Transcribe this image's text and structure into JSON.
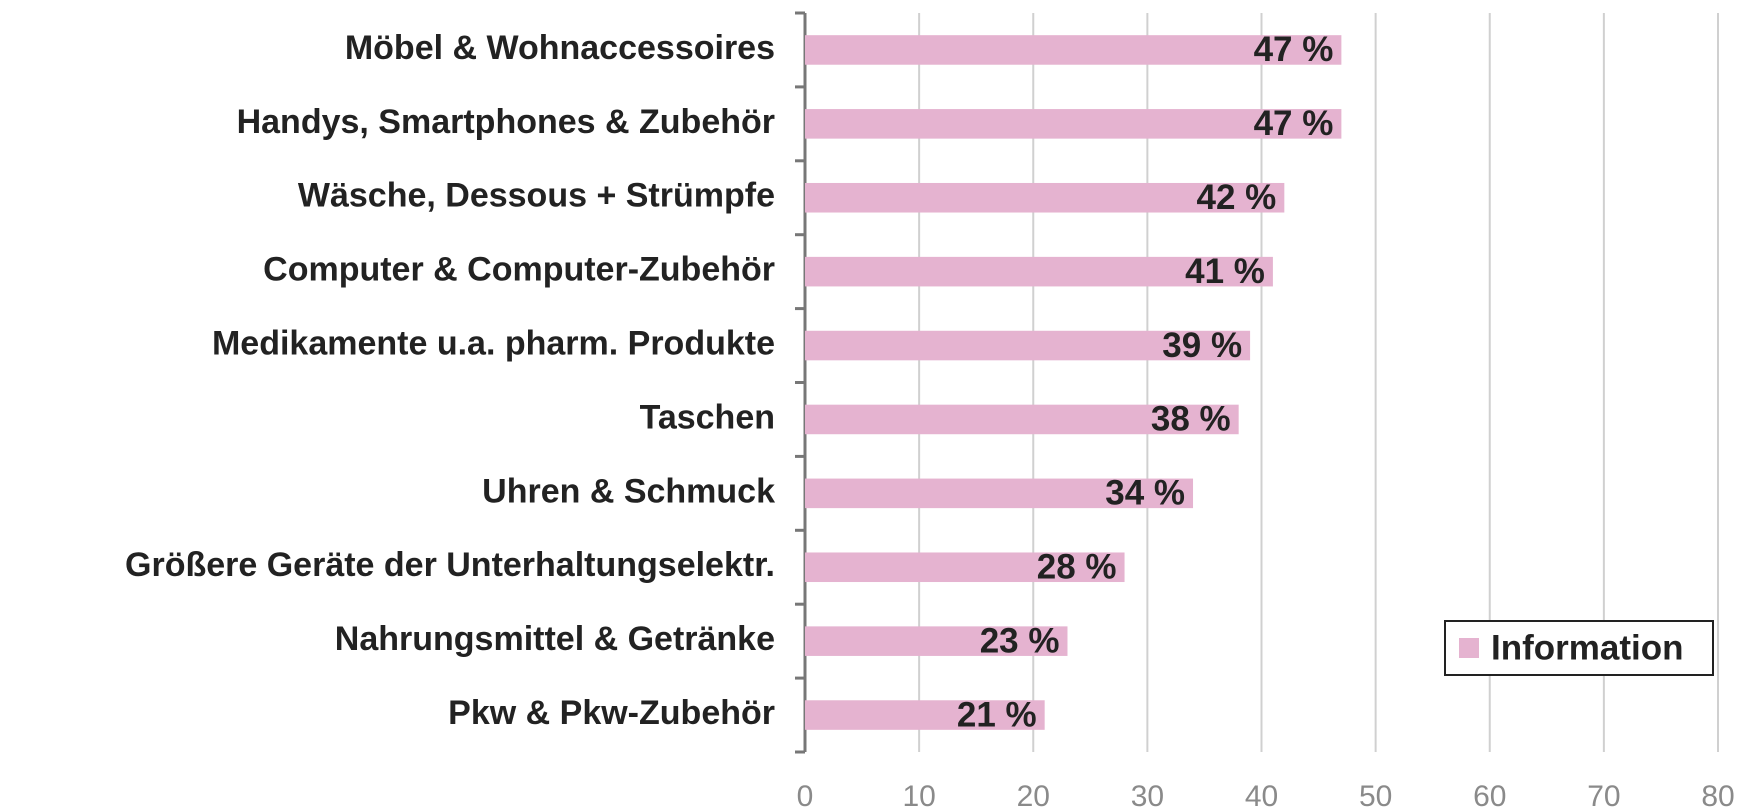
{
  "chart_data": {
    "type": "bar",
    "orientation": "horizontal",
    "categories": [
      "Möbel & Wohnaccessoires",
      "Handys, Smartphones & Zubehör",
      "Wäsche, Dessous + Strümpfe",
      "Computer & Computer-Zubehör",
      "Medikamente u.a. pharm. Produkte",
      "Taschen",
      "Uhren & Schmuck",
      "Größere Geräte der Unterhaltungselektr.",
      "Nahrungsmittel & Getränke",
      "Pkw & Pkw-Zubehör"
    ],
    "series": [
      {
        "name": "Information",
        "color": "#e5b3d0",
        "values": [
          47,
          47,
          42,
          41,
          39,
          38,
          34,
          28,
          23,
          21
        ],
        "value_labels": [
          "47 %",
          "47 %",
          "42 %",
          "41 %",
          "39 %",
          "38 %",
          "34 %",
          "28 %",
          "23 %",
          "21 %"
        ]
      }
    ],
    "xlim": [
      0,
      80
    ],
    "xticks": [
      0,
      10,
      20,
      30,
      40,
      50,
      60,
      70,
      80
    ],
    "grid": true,
    "legend": "lower right"
  }
}
